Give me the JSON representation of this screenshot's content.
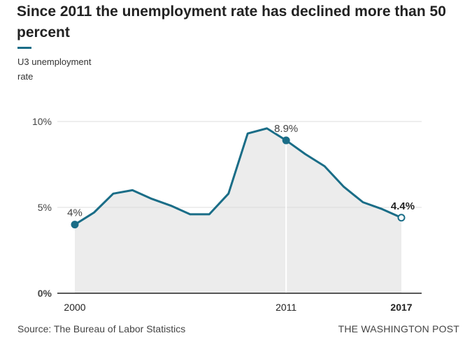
{
  "header": {
    "title": "Since 2011 the unemployment rate has declined more than 50 percent"
  },
  "legend": {
    "label_line1": "U3 unemployment",
    "label_line2": "rate"
  },
  "footer": {
    "source": "Source: The Bureau of Labor Statistics",
    "credit": "THE WASHINGTON POST"
  },
  "colors": {
    "line": "#1a6d87",
    "area": "#ececec",
    "grid": "#dcdcdc",
    "axis": "#222222"
  },
  "chart_data": {
    "type": "area",
    "x": [
      2000,
      2001,
      2002,
      2003,
      2004,
      2005,
      2006,
      2007,
      2008,
      2009,
      2010,
      2011,
      2012,
      2013,
      2014,
      2015,
      2016,
      2017
    ],
    "series": [
      {
        "values": [
          4.0,
          4.7,
          5.8,
          6.0,
          5.5,
          5.1,
          4.6,
          4.6,
          5.8,
          9.3,
          9.6,
          8.9,
          8.1,
          7.4,
          6.2,
          5.3,
          4.9,
          4.4
        ]
      }
    ],
    "ylim": [
      0,
      10
    ],
    "yticks": [
      "0%",
      "5%",
      "10%"
    ],
    "ytick_values": [
      0,
      5,
      10
    ],
    "xticks": [
      "2000",
      "2011",
      "2017"
    ],
    "xtick_values": [
      2000,
      2011,
      2017
    ],
    "annotations": [
      {
        "x": 2000,
        "label": "4%"
      },
      {
        "x": 2011,
        "label": "8.9%"
      },
      {
        "x": 2017,
        "label": "4.4%"
      }
    ],
    "grid": true
  }
}
